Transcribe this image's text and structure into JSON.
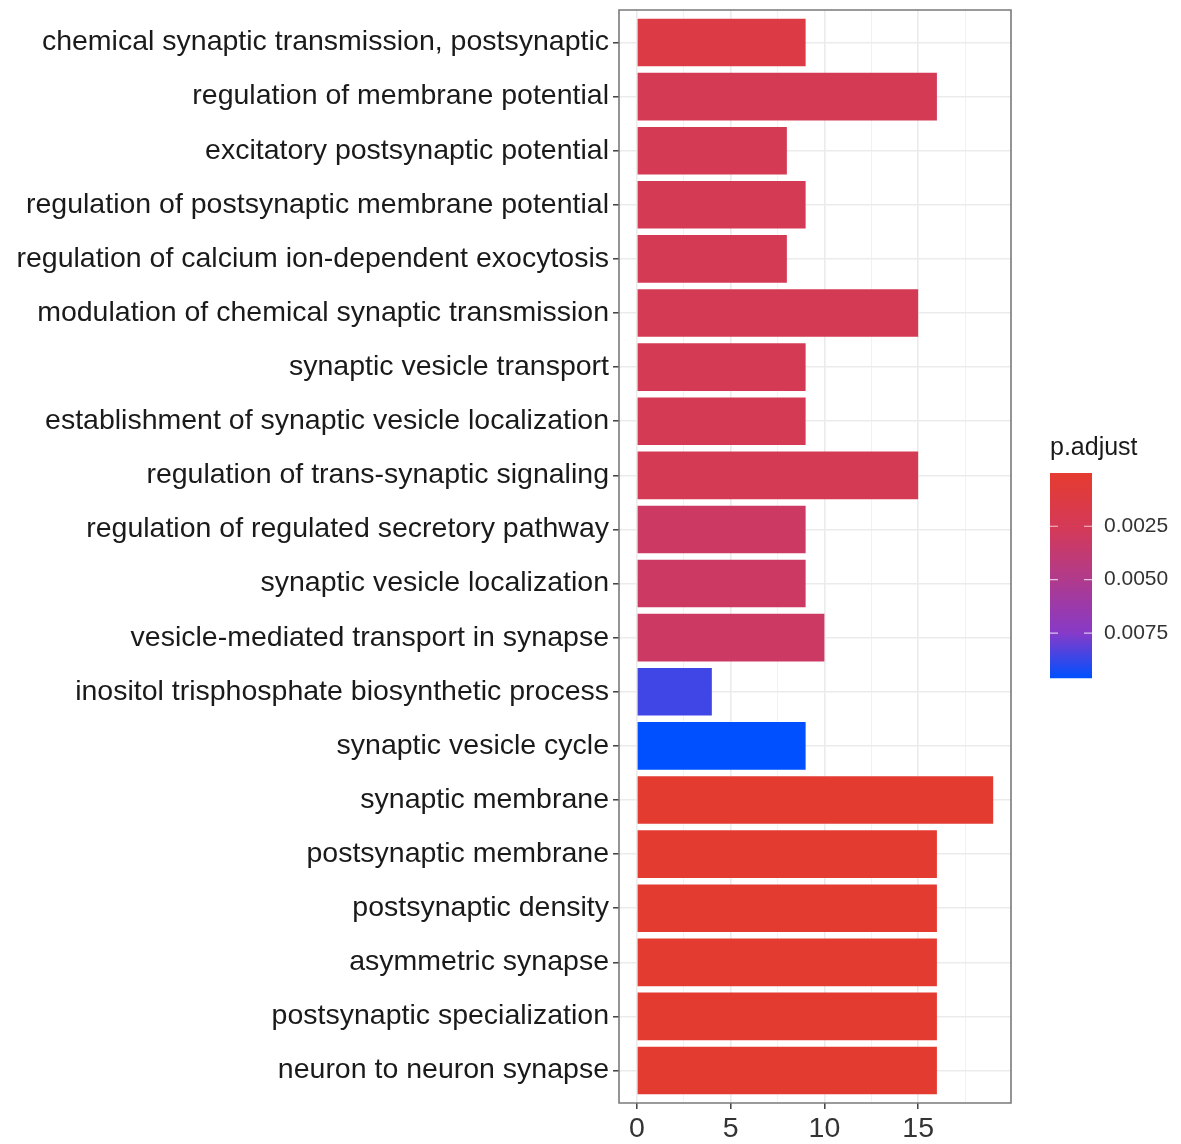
{
  "chart_data": {
    "type": "bar",
    "orientation": "horizontal",
    "categories": [
      "chemical synaptic transmission, postsynaptic",
      "regulation of membrane potential",
      "excitatory postsynaptic potential",
      "regulation of postsynaptic membrane potential",
      "regulation of calcium ion-dependent exocytosis",
      "modulation of chemical synaptic transmission",
      "synaptic vesicle transport",
      "establishment of synaptic vesicle localization",
      "regulation of trans-synaptic signaling",
      "regulation of regulated secretory pathway",
      "synaptic vesicle localization",
      "vesicle-mediated transport in synapse",
      "inositol trisphosphate biosynthetic process",
      "synaptic vesicle cycle",
      "synaptic membrane",
      "postsynaptic membrane",
      "postsynaptic density",
      "asymmetric synapse",
      "postsynaptic specialization",
      "neuron to neuron synapse"
    ],
    "values": [
      9,
      16,
      8,
      9,
      8,
      15,
      9,
      9,
      15,
      9,
      9,
      10,
      4,
      9,
      19,
      16,
      16,
      16,
      16,
      16
    ],
    "cvalues": [
      0.0014,
      0.0024,
      0.0024,
      0.0024,
      0.0024,
      0.0024,
      0.0024,
      0.0024,
      0.0024,
      0.0031,
      0.0031,
      0.0031,
      0.0086,
      0.0096,
      0.0001,
      0.0001,
      0.0001,
      0.0001,
      0.0001,
      0.0001
    ],
    "clabel": "p.adjust",
    "clim": [
      0.0096,
      1e-05
    ],
    "cticks": [
      0.0025,
      {
        "value": 0.005,
        "label": "0.0050"
      },
      0.0075
    ],
    "xlim": [
      -0.95,
      19.95
    ],
    "xticks": [
      0,
      {
        "value": 2.5,
        "label": null
      },
      5,
      {
        "value": 7.5,
        "label": null
      },
      10,
      {
        "value": 12.5,
        "label": null
      },
      15,
      {
        "value": 17.5,
        "label": null
      }
    ],
    "grid": true
  }
}
